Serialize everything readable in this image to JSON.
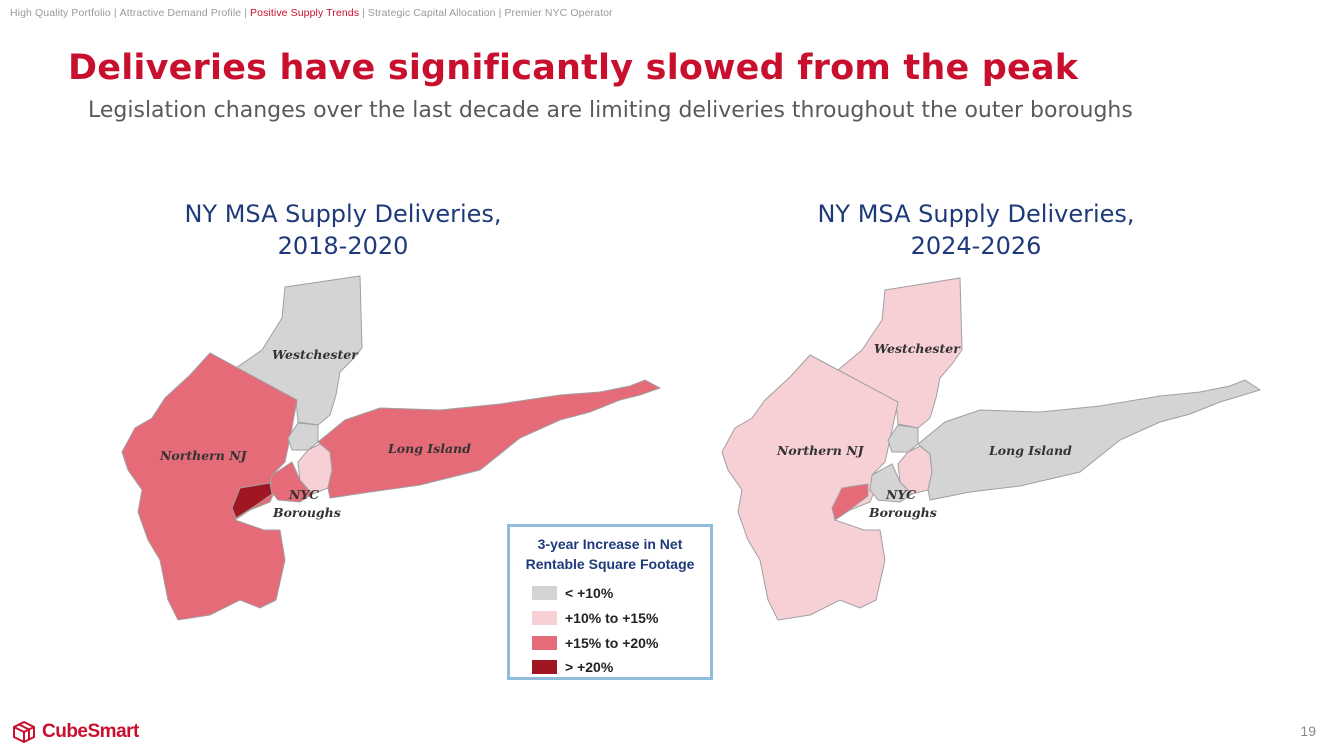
{
  "breadcrumb": [
    {
      "label": "High Quality Portfolio",
      "active": false
    },
    {
      "label": "Attractive Demand Profile",
      "active": false
    },
    {
      "label": "Positive Supply Trends",
      "active": true
    },
    {
      "label": "Strategic Capital Allocation",
      "active": false
    },
    {
      "label": "Premier NYC Operator",
      "active": false
    }
  ],
  "breadcrumb_separator": "|",
  "title": "Deliveries have significantly slowed from the peak",
  "subtitle": "Legislation changes over the last decade are limiting deliveries throughout the outer boroughs",
  "colors": {
    "brand_red": "#c8102e",
    "title_blue": "#1f3a7a",
    "lt10": "#d4d4d4",
    "10to15": "#f6d0d4",
    "15to20": "#e66b78",
    "gt20": "#a01622"
  },
  "maps": [
    {
      "title_line1": "NY MSA Supply Deliveries,",
      "title_line2": "2018-2020",
      "regions": {
        "westchester": {
          "label": "Westchester",
          "category": "lt10"
        },
        "northern_nj": {
          "label": "Northern NJ",
          "category": "15to20"
        },
        "long_island": {
          "label": "Long Island",
          "category": "15to20"
        },
        "bronx": {
          "category": "lt10"
        },
        "queens": {
          "category": "10to15"
        },
        "brooklyn": {
          "category": "15to20"
        },
        "staten_island": {
          "category": "gt20"
        }
      },
      "nyc_label_line1": "NYC",
      "nyc_label_line2": "Boroughs"
    },
    {
      "title_line1": "NY MSA Supply Deliveries,",
      "title_line2": "2024-2026",
      "regions": {
        "westchester": {
          "label": "Westchester",
          "category": "10to15"
        },
        "northern_nj": {
          "label": "Northern NJ",
          "category": "10to15"
        },
        "long_island": {
          "label": "Long Island",
          "category": "lt10"
        },
        "bronx": {
          "category": "lt10"
        },
        "queens": {
          "category": "10to15"
        },
        "brooklyn": {
          "category": "lt10"
        },
        "staten_island": {
          "category": "15to20"
        }
      },
      "nyc_label_line1": "NYC",
      "nyc_label_line2": "Boroughs"
    }
  ],
  "legend": {
    "title_line1": "3-year Increase in Net",
    "title_line2": "Rentable Square Footage",
    "items": [
      {
        "key": "lt10",
        "label": "< +10%"
      },
      {
        "key": "10to15",
        "label": "+10% to +15%"
      },
      {
        "key": "15to20",
        "label": "+15% to +20%"
      },
      {
        "key": "gt20",
        "label": "> +20%"
      }
    ]
  },
  "logo": {
    "text": "CubeSmart",
    "icon": "cube-logo-icon"
  },
  "page_number": "19"
}
